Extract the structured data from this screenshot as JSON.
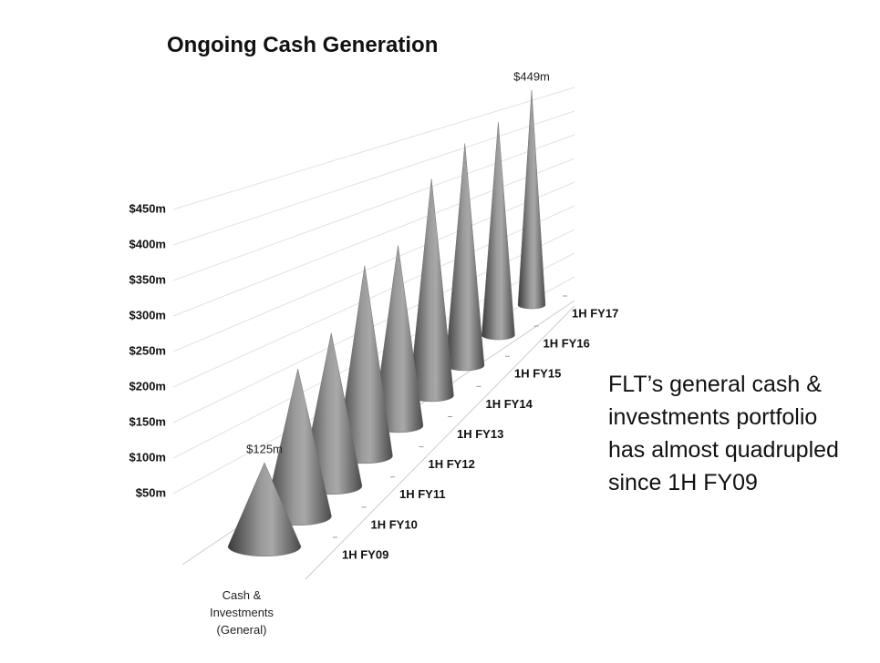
{
  "chart_data": {
    "type": "cone3d",
    "title": "Ongoing Cash Generation",
    "categories": [
      "1H FY09",
      "1H FY10",
      "1H FY11",
      "1H FY12",
      "1H FY13",
      "1H FY14",
      "1H FY15",
      "1H FY16",
      "1H FY17"
    ],
    "values": [
      125,
      228,
      246,
      318,
      314,
      394,
      422,
      424,
      449
    ],
    "value_labels": [
      "$125m",
      null,
      null,
      null,
      null,
      null,
      null,
      null,
      "$449m"
    ],
    "color": "#6e6e6e",
    "ylim": [
      0,
      500
    ],
    "yticks": [
      {
        "value": 50,
        "label": "$50m"
      },
      {
        "value": 100,
        "label": "$100m"
      },
      {
        "value": 150,
        "label": "$150m"
      },
      {
        "value": 200,
        "label": "$200m"
      },
      {
        "value": 250,
        "label": "$250m"
      },
      {
        "value": 300,
        "label": "$300m"
      },
      {
        "value": 350,
        "label": "$350m"
      },
      {
        "value": 400,
        "label": "$400m"
      },
      {
        "value": 450,
        "label": "$450m"
      }
    ],
    "grid": true,
    "x_label": [
      "Cash &",
      "Investments",
      "(General)"
    ],
    "annotation": [
      "FLT’s general cash &",
      "investments portfolio",
      "has almost quadrupled",
      "since 1H FY09"
    ]
  }
}
